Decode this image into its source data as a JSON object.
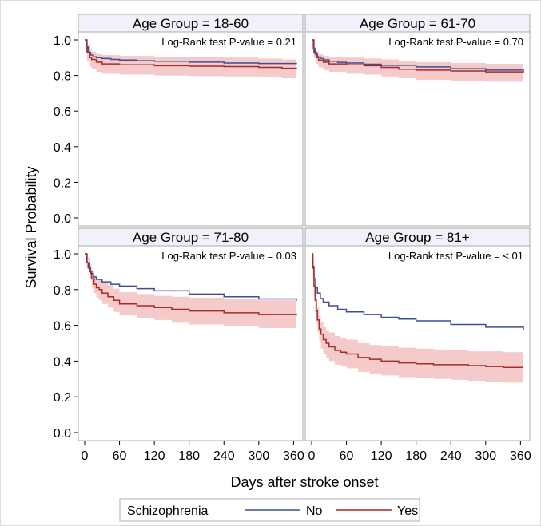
{
  "chart_data": {
    "type": "line",
    "subtype": "kaplan-meier-step",
    "ylabel": "Survival Probability",
    "xlabel": "Days after stroke onset",
    "xlim": [
      0,
      365
    ],
    "ylim": [
      0.0,
      1.0
    ],
    "x_ticks": [
      0,
      60,
      120,
      180,
      240,
      300,
      360
    ],
    "y_ticks": [
      0.0,
      0.2,
      0.4,
      0.6,
      0.8,
      1.0
    ],
    "y_tick_labels": [
      "0.0",
      "0.2",
      "0.4",
      "0.6",
      "0.8",
      "1.0"
    ],
    "legend": {
      "title": "Schizophrenia",
      "position": "bottom",
      "entries": [
        "No",
        "Yes"
      ]
    },
    "colors": {
      "No": "#3f4f95",
      "Yes": "#a52a2a",
      "band": "#f0b8b8"
    },
    "panels": [
      {
        "title": "Age Group = 18-60",
        "pvalue_text": "Log-Rank test P-value = 0.21",
        "series": [
          {
            "name": "No",
            "x": [
              0,
              3,
              6,
              10,
              15,
              20,
              30,
              45,
              60,
              90,
              120,
              180,
              240,
              300,
              365
            ],
            "y": [
              1.0,
              0.96,
              0.93,
              0.915,
              0.905,
              0.9,
              0.895,
              0.89,
              0.887,
              0.883,
              0.88,
              0.875,
              0.87,
              0.867,
              0.864
            ]
          },
          {
            "name": "Yes",
            "x": [
              0,
              4,
              8,
              12,
              20,
              30,
              60,
              120,
              180,
              240,
              300,
              340,
              365
            ],
            "y": [
              1.0,
              0.93,
              0.9,
              0.89,
              0.875,
              0.865,
              0.86,
              0.855,
              0.852,
              0.85,
              0.845,
              0.84,
              0.835
            ],
            "ci_lower": [
              1.0,
              0.88,
              0.85,
              0.835,
              0.82,
              0.81,
              0.805,
              0.8,
              0.797,
              0.795,
              0.79,
              0.785,
              0.78
            ],
            "ci_upper": [
              1.0,
              0.97,
              0.945,
              0.935,
              0.92,
              0.915,
              0.91,
              0.905,
              0.903,
              0.9,
              0.895,
              0.89,
              0.885
            ]
          }
        ]
      },
      {
        "title": "Age Group = 61-70",
        "pvalue_text": "Log-Rank test P-value = 0.70",
        "series": [
          {
            "name": "No",
            "x": [
              0,
              3,
              6,
              10,
              15,
              20,
              30,
              45,
              60,
              90,
              120,
              180,
              240,
              300,
              365
            ],
            "y": [
              1.0,
              0.95,
              0.92,
              0.905,
              0.895,
              0.888,
              0.88,
              0.874,
              0.87,
              0.863,
              0.857,
              0.848,
              0.838,
              0.83,
              0.822
            ]
          },
          {
            "name": "Yes",
            "x": [
              0,
              4,
              8,
              12,
              20,
              30,
              60,
              90,
              120,
              150,
              180,
              240,
              300,
              365
            ],
            "y": [
              1.0,
              0.93,
              0.9,
              0.885,
              0.875,
              0.865,
              0.86,
              0.855,
              0.845,
              0.835,
              0.83,
              0.825,
              0.82,
              0.815
            ],
            "ci_lower": [
              1.0,
              0.9,
              0.865,
              0.845,
              0.83,
              0.82,
              0.81,
              0.805,
              0.795,
              0.785,
              0.775,
              0.77,
              0.765,
              0.755
            ],
            "ci_upper": [
              1.0,
              0.96,
              0.935,
              0.92,
              0.91,
              0.905,
              0.9,
              0.895,
              0.89,
              0.88,
              0.875,
              0.87,
              0.865,
              0.86
            ]
          }
        ]
      },
      {
        "title": "Age Group = 71-80",
        "pvalue_text": "Log-Rank test P-value = 0.03",
        "series": [
          {
            "name": "No",
            "x": [
              0,
              3,
              6,
              10,
              15,
              20,
              30,
              45,
              60,
              90,
              120,
              180,
              240,
              300,
              365
            ],
            "y": [
              1.0,
              0.95,
              0.92,
              0.89,
              0.87,
              0.857,
              0.843,
              0.83,
              0.82,
              0.805,
              0.793,
              0.775,
              0.76,
              0.748,
              0.738
            ]
          },
          {
            "name": "Yes",
            "x": [
              0,
              4,
              8,
              12,
              16,
              20,
              25,
              30,
              40,
              50,
              60,
              90,
              120,
              150,
              180,
              240,
              300,
              365
            ],
            "y": [
              1.0,
              0.95,
              0.9,
              0.86,
              0.83,
              0.81,
              0.8,
              0.78,
              0.76,
              0.74,
              0.72,
              0.71,
              0.7,
              0.69,
              0.68,
              0.67,
              0.66,
              0.655
            ],
            "ci_lower": [
              1.0,
              0.92,
              0.86,
              0.81,
              0.78,
              0.755,
              0.74,
              0.72,
              0.7,
              0.675,
              0.655,
              0.64,
              0.63,
              0.615,
              0.605,
              0.595,
              0.585,
              0.575
            ],
            "ci_upper": [
              1.0,
              0.98,
              0.94,
              0.91,
              0.88,
              0.86,
              0.855,
              0.84,
              0.825,
              0.805,
              0.785,
              0.775,
              0.765,
              0.76,
              0.755,
              0.745,
              0.74,
              0.735
            ]
          }
        ]
      },
      {
        "title": "Age Group = 81+",
        "pvalue_text": "Log-Rank test P-value = <.01",
        "series": [
          {
            "name": "No",
            "x": [
              0,
              2,
              4,
              7,
              10,
              15,
              20,
              30,
              45,
              60,
              90,
              120,
              150,
              180,
              240,
              300,
              365
            ],
            "y": [
              1.0,
              0.93,
              0.86,
              0.81,
              0.78,
              0.75,
              0.73,
              0.71,
              0.69,
              0.675,
              0.66,
              0.645,
              0.635,
              0.625,
              0.605,
              0.59,
              0.575
            ]
          },
          {
            "name": "Yes",
            "x": [
              0,
              2,
              4,
              6,
              8,
              10,
              13,
              16,
              20,
              25,
              30,
              40,
              50,
              60,
              80,
              100,
              120,
              150,
              180,
              210,
              240,
              270,
              300,
              330,
              365
            ],
            "y": [
              1.0,
              0.92,
              0.82,
              0.74,
              0.68,
              0.63,
              0.58,
              0.55,
              0.52,
              0.5,
              0.48,
              0.46,
              0.45,
              0.44,
              0.42,
              0.41,
              0.4,
              0.39,
              0.385,
              0.38,
              0.38,
              0.375,
              0.37,
              0.365,
              0.365
            ],
            "ci_lower": [
              1.0,
              0.87,
              0.76,
              0.67,
              0.61,
              0.56,
              0.51,
              0.47,
              0.44,
              0.42,
              0.4,
              0.38,
              0.37,
              0.36,
              0.34,
              0.33,
              0.32,
              0.31,
              0.305,
              0.3,
              0.295,
              0.29,
              0.285,
              0.28,
              0.275
            ],
            "ci_upper": [
              1.0,
              0.97,
              0.88,
              0.81,
              0.75,
              0.7,
              0.65,
              0.62,
              0.59,
              0.57,
              0.56,
              0.54,
              0.53,
              0.52,
              0.5,
              0.49,
              0.485,
              0.475,
              0.47,
              0.465,
              0.46,
              0.455,
              0.455,
              0.45,
              0.45
            ]
          }
        ]
      }
    ]
  }
}
